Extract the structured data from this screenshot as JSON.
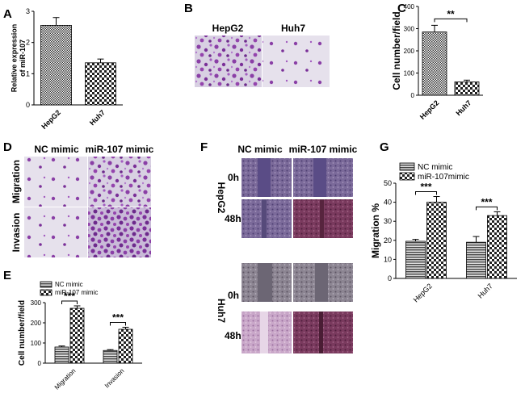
{
  "panels": {
    "A": "A",
    "B": "B",
    "C": "C",
    "D": "D",
    "E": "E",
    "F": "F",
    "G": "G"
  },
  "panel_b": {
    "labels": [
      "HepG2",
      "Huh7"
    ]
  },
  "panel_d": {
    "columns": [
      "NC mimic",
      "miR-107 mimic"
    ],
    "rows": [
      "Migration",
      "Invasion"
    ]
  },
  "panel_f": {
    "columns": [
      "NC mimic",
      "miR-107 mimic"
    ],
    "cell_lines": [
      "HepG2",
      "Huh7"
    ],
    "times": [
      "0h",
      "48h"
    ]
  },
  "colors": {
    "bar_border": "#000000",
    "stain_purple": "#8a3fa6",
    "stain_bg": "#cfc7dc"
  },
  "chart_data": [
    {
      "panel": "A",
      "type": "bar",
      "categories": [
        "HepG2",
        "Huh7"
      ],
      "values": [
        2.55,
        1.35
      ],
      "errors": [
        0.25,
        0.12
      ],
      "ylabel": "Relative expression of miR-107",
      "ylim": [
        0,
        3
      ],
      "yticks": [
        "0",
        "1",
        "2",
        "3"
      ]
    },
    {
      "panel": "C",
      "type": "bar",
      "categories": [
        "HepG2",
        "Huh7"
      ],
      "values": [
        285,
        60
      ],
      "errors": [
        30,
        8
      ],
      "ylabel": "Cell number/field",
      "ylim": [
        0,
        400
      ],
      "yticks": [
        "0",
        "100",
        "200",
        "300",
        "400"
      ],
      "significance": "**"
    },
    {
      "panel": "E",
      "type": "bar",
      "categories": [
        "Migration",
        "Invasion"
      ],
      "series": [
        {
          "name": "NC mimic",
          "values": [
            80,
            63
          ],
          "errors": [
            5,
            4
          ]
        },
        {
          "name": "miR-107 mimic",
          "values": [
            272,
            168
          ],
          "errors": [
            12,
            10
          ]
        }
      ],
      "ylabel": "Cell number/field",
      "ylim": [
        0,
        300
      ],
      "yticks": [
        "0",
        "100",
        "200",
        "300"
      ],
      "significance": [
        "***",
        "***"
      ],
      "legend": "top"
    },
    {
      "panel": "G",
      "type": "bar",
      "categories": [
        "HepG2",
        "Huh7"
      ],
      "series": [
        {
          "name": "NC mimic",
          "values": [
            19.5,
            19
          ],
          "errors": [
            1,
            3
          ]
        },
        {
          "name": "miR-107mimic",
          "values": [
            40,
            33
          ],
          "errors": [
            3,
            2
          ]
        }
      ],
      "ylabel": "Migration %",
      "ylim": [
        0,
        50
      ],
      "yticks": [
        "0",
        "10",
        "20",
        "30",
        "40",
        "50"
      ],
      "significance": [
        "***",
        "***"
      ],
      "legend": "top"
    }
  ]
}
